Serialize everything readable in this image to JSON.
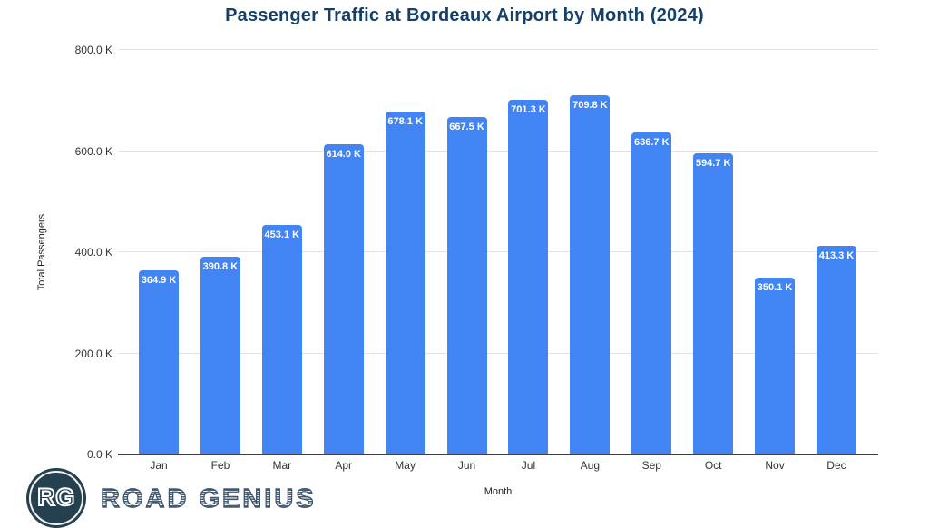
{
  "chart_data": {
    "type": "bar",
    "title": "Passenger Traffic at Bordeaux Airport by Month (2024)",
    "xlabel": "Month",
    "ylabel": "Total Passengers",
    "categories": [
      "Jan",
      "Feb",
      "Mar",
      "Apr",
      "May",
      "Jun",
      "Jul",
      "Aug",
      "Sep",
      "Oct",
      "Nov",
      "Dec"
    ],
    "values": [
      364.9,
      390.8,
      453.1,
      614.0,
      678.1,
      667.5,
      701.3,
      709.8,
      636.7,
      594.7,
      350.1,
      413.3
    ],
    "value_unit": "K",
    "bar_labels": [
      "364.9 K",
      "390.8 K",
      "453.1 K",
      "614.0 K",
      "678.1 K",
      "667.5 K",
      "701.3 K",
      "709.8 K",
      "636.7 K",
      "594.7 K",
      "350.1 K",
      "413.3 K"
    ],
    "y_ticks": [
      "0.0 K",
      "200.0 K",
      "400.0 K",
      "600.0 K",
      "800.0 K"
    ],
    "ylim": [
      0,
      800
    ],
    "grid": true,
    "legend": "none",
    "bar_color": "#4284f3",
    "bar_label_color": "#ffffff",
    "title_color": "#14406b"
  },
  "branding": {
    "logo_monogram": "RG",
    "logo_text": "ROAD GENIUS",
    "logo_color": "#25404f"
  }
}
